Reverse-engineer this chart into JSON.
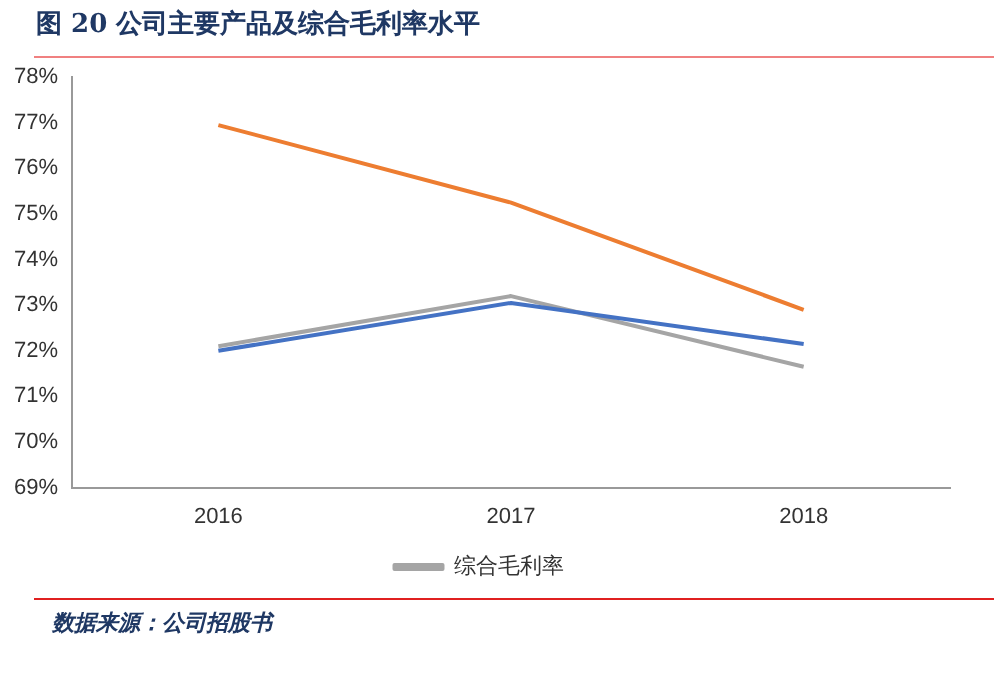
{
  "chart_data": {
    "type": "line",
    "title": "图 20 公司主要产品及综合毛利率水平",
    "categories": [
      "2016",
      "2017",
      "2018"
    ],
    "series": [
      {
        "color": "#4472c4",
        "values": [
          72.0,
          73.05,
          72.15
        ]
      },
      {
        "color": "#ed7d31",
        "values": [
          76.95,
          75.25,
          72.9
        ]
      },
      {
        "name": "综合毛利率",
        "color": "#a5a5a5",
        "values": [
          72.1,
          73.2,
          71.65
        ]
      }
    ],
    "ylim": [
      69,
      78
    ],
    "yticks": [
      {
        "value": 69,
        "label": "69%"
      },
      {
        "value": 70,
        "label": "70%"
      },
      {
        "value": 71,
        "label": "71%"
      },
      {
        "value": 72,
        "label": "72%"
      },
      {
        "value": 73,
        "label": "73%"
      },
      {
        "value": 74,
        "label": "74%"
      },
      {
        "value": 75,
        "label": "75%"
      },
      {
        "value": 76,
        "label": "76%"
      },
      {
        "value": 77,
        "label": "77%"
      },
      {
        "value": 78,
        "label": "78%"
      }
    ],
    "grid": false,
    "legend": "bottom",
    "marker": "none",
    "line_style": "solid",
    "annotations": [
      "数据来源：公司招股书"
    ]
  }
}
